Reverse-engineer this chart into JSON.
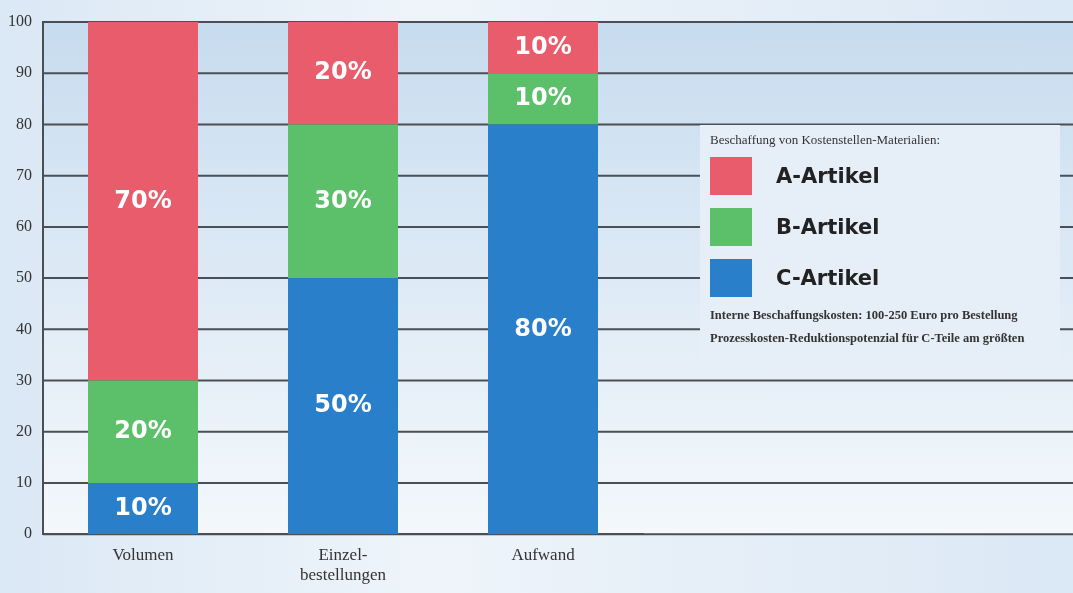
{
  "chart_data": {
    "type": "bar",
    "stacked": true,
    "categories": [
      "Volumen",
      "Einzel-bestellungen",
      "Aufwand"
    ],
    "series": [
      {
        "name": "C-Artikel",
        "color": "#2a7fcb",
        "values": [
          10,
          50,
          80
        ],
        "value_labels": [
          "10%",
          "50%",
          "80%"
        ]
      },
      {
        "name": "B-Artikel",
        "color": "#5cbf6a",
        "values": [
          20,
          30,
          10
        ],
        "value_labels": [
          "20%",
          "30%",
          "10%"
        ]
      },
      {
        "name": "A-Artikel",
        "color": "#e85c6c",
        "values": [
          70,
          20,
          10
        ],
        "value_labels": [
          "70%",
          "20%",
          "10%"
        ]
      }
    ],
    "ylim": [
      0,
      100
    ],
    "yticks": [
      0,
      10,
      20,
      30,
      40,
      50,
      60,
      70,
      80,
      90,
      100
    ],
    "grid": "y",
    "legend": "right",
    "legend_title": "Beschaffung von Kostenstellen-Materialien:",
    "annotations": [
      "Interne Beschaffungskosten: 100-250 Euro pro Bestellung",
      "Prozesskosten-Reduktionspotenzial für C-Teile am größten"
    ]
  }
}
